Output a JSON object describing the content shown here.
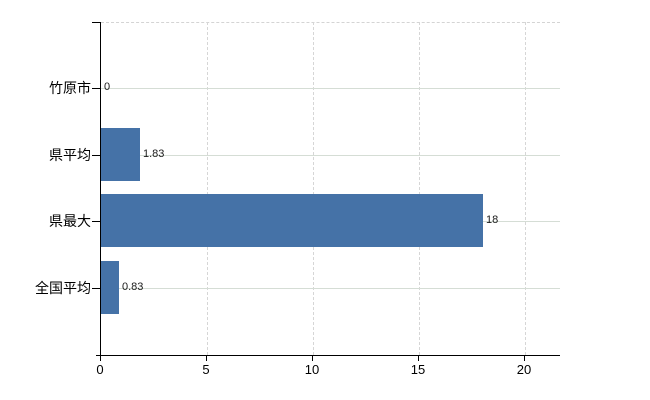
{
  "chart_data": {
    "type": "bar",
    "orientation": "horizontal",
    "title": "",
    "xlabel": "",
    "ylabel": "",
    "categories": [
      "竹原市",
      "県平均",
      "県最大",
      "全国平均"
    ],
    "values": [
      0,
      1.83,
      18,
      0.83
    ],
    "value_labels": [
      "0",
      "1.83",
      "18",
      "0.83"
    ],
    "series": [
      {
        "name": "",
        "values": [
          0,
          1.83,
          18,
          0.83
        ]
      }
    ],
    "xticks": [
      0,
      5,
      10,
      15,
      20
    ],
    "xtick_labels": [
      "0",
      "5",
      "10",
      "15",
      "20"
    ],
    "xlim": [
      0,
      21.65
    ],
    "grid": "on",
    "gridline_style_vertical": "dashed",
    "gridline_style_horizontal": "solid",
    "legend": "none",
    "colors": {
      "bar": "#4572A7",
      "axis": "#000000",
      "grid_horizontal": "#d5ddd5",
      "grid_vertical": "#d6d6d6",
      "plot_border_top": "#d4d4d4",
      "text": "#000000",
      "value_label": "#1a1a1a",
      "background": "#ffffff"
    }
  }
}
